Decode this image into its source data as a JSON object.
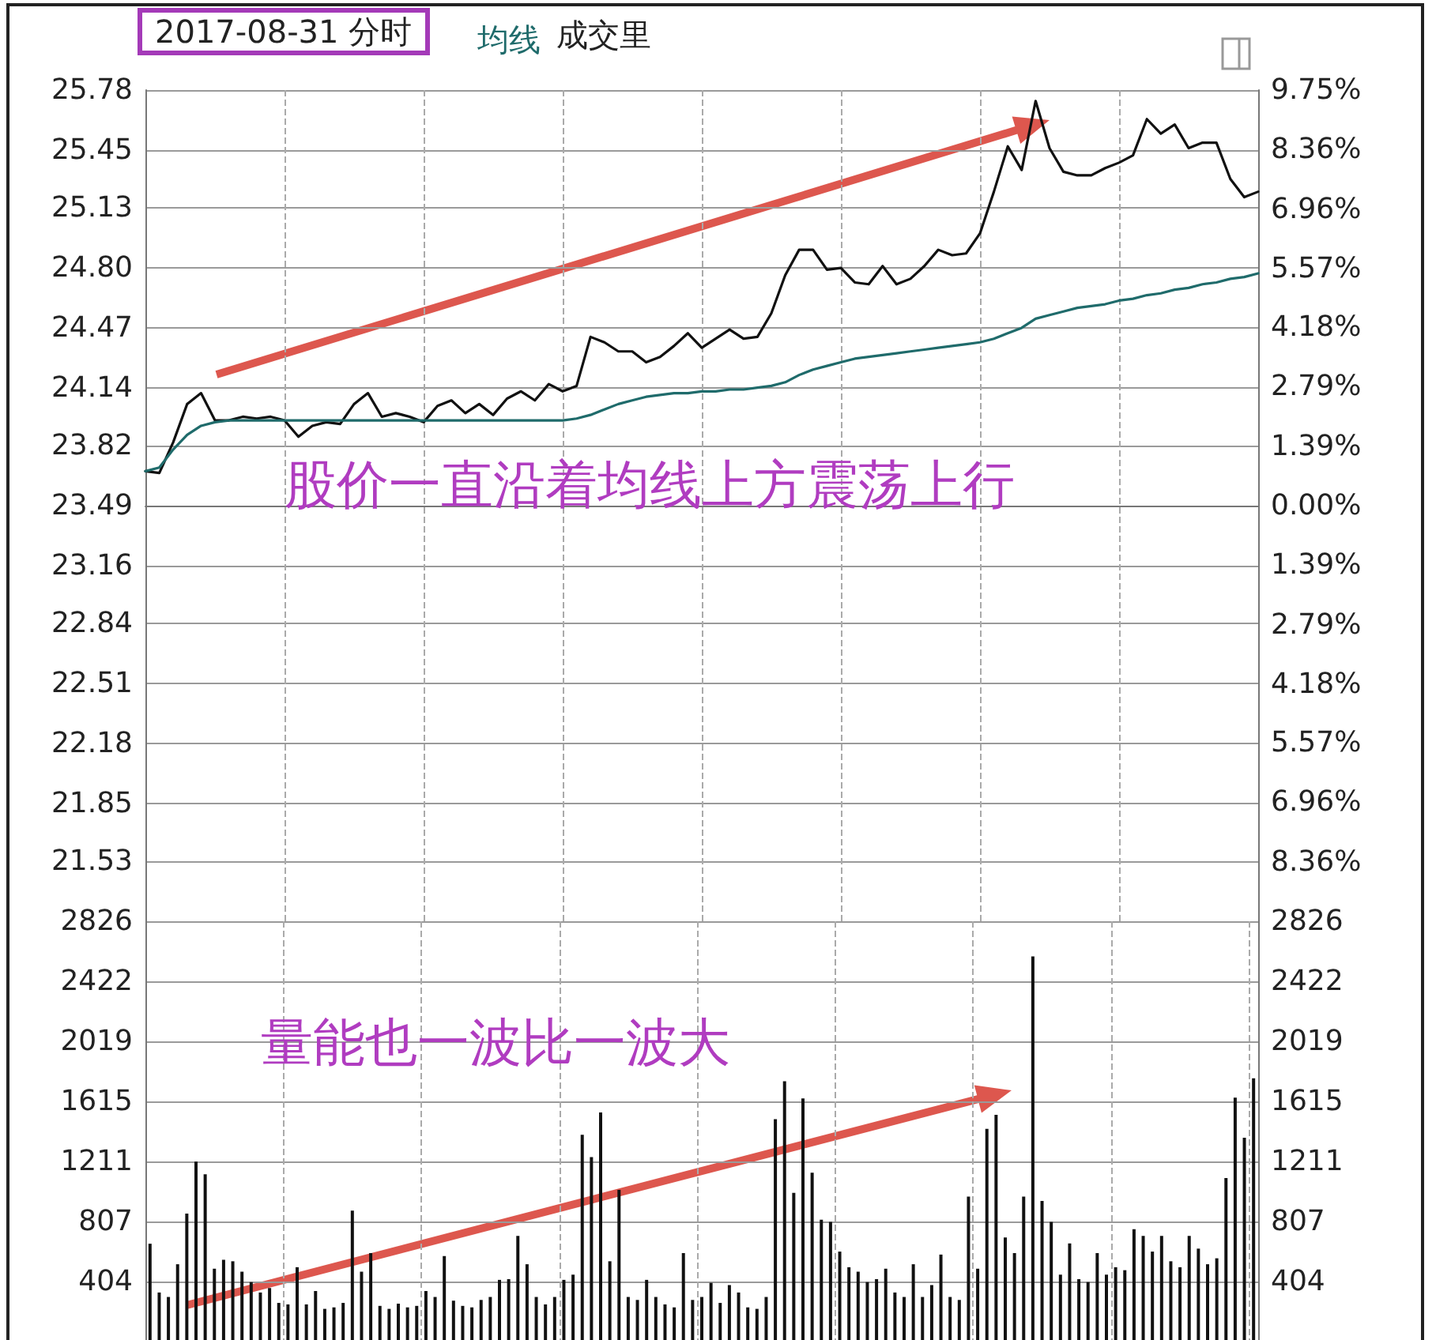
{
  "chart_data": [
    {
      "type": "line",
      "title": "2017-08-31 分时",
      "annotations": [
        "成交里",
        "股价一直沿着均线上方震荡上行"
      ],
      "categories": [
        null,
        null,
        null,
        null,
        null,
        null,
        null,
        null,
        null,
        null,
        null,
        null,
        null,
        null,
        null,
        null,
        null,
        null,
        null,
        null,
        null,
        null,
        null,
        null,
        null,
        null,
        null,
        null,
        null,
        null,
        null,
        null,
        null,
        null,
        null,
        null,
        null,
        null,
        null,
        null,
        null,
        null,
        null,
        null,
        null,
        null,
        null,
        null,
        null,
        null,
        null,
        null,
        null,
        null,
        null,
        null,
        null,
        null,
        null,
        null,
        null,
        null,
        null,
        null,
        null,
        null,
        null,
        null,
        null,
        null,
        null,
        null,
        null,
        null,
        null,
        null,
        null,
        null,
        null,
        null,
        null
      ],
      "series": [
        {
          "color": "#111111",
          "values": [
            23.68,
            23.67,
            23.84,
            24.05,
            24.11,
            23.96,
            23.96,
            23.98,
            23.97,
            23.98,
            23.96,
            23.87,
            23.93,
            23.95,
            23.94,
            24.05,
            24.11,
            23.98,
            24.0,
            23.98,
            23.95,
            24.04,
            24.07,
            24.0,
            24.05,
            23.99,
            24.08,
            24.12,
            24.07,
            24.16,
            24.12,
            24.15,
            24.42,
            24.39,
            24.34,
            24.34,
            24.28,
            24.31,
            24.37,
            24.44,
            24.36,
            24.41,
            24.46,
            24.41,
            24.42,
            24.55,
            24.76,
            24.9,
            24.9,
            24.79,
            24.8,
            24.72,
            24.71,
            24.81,
            24.71,
            24.74,
            24.81,
            24.9,
            24.87,
            24.88,
            24.99,
            25.22,
            25.47,
            25.34,
            25.72,
            25.46,
            25.33,
            25.31,
            25.31,
            25.35,
            25.38,
            25.42,
            25.62,
            25.54,
            25.59,
            25.46,
            25.49,
            25.49,
            25.29,
            25.19,
            25.22
          ]
        },
        {
          "name": "均线",
          "color": "#1f6b6b",
          "values": [
            23.68,
            23.7,
            23.8,
            23.88,
            23.93,
            23.95,
            23.96,
            23.96,
            23.96,
            23.96,
            23.96,
            23.96,
            23.96,
            23.96,
            23.96,
            23.96,
            23.96,
            23.96,
            23.96,
            23.96,
            23.96,
            23.96,
            23.96,
            23.96,
            23.96,
            23.96,
            23.96,
            23.96,
            23.96,
            23.96,
            23.96,
            23.97,
            23.99,
            24.02,
            24.05,
            24.07,
            24.09,
            24.1,
            24.11,
            24.11,
            24.12,
            24.12,
            24.13,
            24.13,
            24.14,
            24.15,
            24.17,
            24.21,
            24.24,
            24.26,
            24.28,
            24.3,
            24.31,
            24.32,
            24.33,
            24.34,
            24.35,
            24.36,
            24.37,
            24.38,
            24.39,
            24.41,
            24.44,
            24.47,
            24.52,
            24.54,
            24.56,
            24.58,
            24.59,
            24.6,
            24.62,
            24.63,
            24.65,
            24.66,
            24.68,
            24.69,
            24.71,
            24.72,
            24.74,
            24.75,
            24.77
          ]
        }
      ],
      "ylim": [
        21.2,
        25.78
      ],
      "yticks": [
        25.78,
        25.45,
        25.13,
        {
          "value": 24.8,
          "label": "24.80"
        },
        24.47,
        24.14,
        23.82,
        23.49,
        23.16,
        22.84,
        22.51,
        22.18,
        21.85,
        21.53
      ],
      "y2lim": [
        -9.75,
        9.75
      ],
      "y2ticks": [
        {
          "value": 9.75,
          "label": "9.75%"
        },
        {
          "value": 8.36,
          "label": "8.36%"
        },
        {
          "value": 6.96,
          "label": "6.96%"
        },
        {
          "value": 5.57,
          "label": "5.57%"
        },
        {
          "value": 4.18,
          "label": "4.18%"
        },
        {
          "value": 2.79,
          "label": "2.79%"
        },
        {
          "value": 1.39,
          "label": "1.39%"
        },
        {
          "value": 0,
          "label": "0.00%"
        },
        {
          "value": -1.39,
          "label": "1.39%"
        },
        {
          "value": -2.79,
          "label": "2.79%"
        },
        {
          "value": -4.18,
          "label": "4.18%"
        },
        {
          "value": -5.57,
          "label": "5.57%"
        },
        {
          "value": -6.96,
          "label": "6.96%"
        },
        {
          "value": -8.36,
          "label": "8.36%"
        }
      ],
      "grid": true,
      "legend": "top left",
      "tick_labels": "y"
    },
    {
      "type": "bar",
      "annotations": [
        "量能也一波比一波大"
      ],
      "categories": [
        null,
        null,
        null,
        null,
        null,
        null,
        null,
        null,
        null,
        null,
        null,
        null,
        null,
        null,
        null,
        null,
        null,
        null,
        null,
        null,
        null,
        null,
        null,
        null,
        null,
        null,
        null,
        null,
        null,
        null,
        null,
        null,
        null,
        null,
        null,
        null,
        null,
        null,
        null,
        null,
        null,
        null,
        null,
        null,
        null,
        null,
        null,
        null,
        null,
        null,
        null,
        null,
        null,
        null,
        null,
        null,
        null,
        null,
        null,
        null,
        null,
        null,
        null,
        null,
        null,
        null,
        null,
        null,
        null,
        null,
        null,
        null,
        null,
        null,
        null,
        null,
        null,
        null,
        null,
        null,
        null,
        null,
        null,
        null,
        null,
        null,
        null,
        null,
        null,
        null,
        null,
        null,
        null,
        null,
        null,
        null,
        null,
        null,
        null,
        null,
        null,
        null,
        null,
        null,
        null,
        null,
        null,
        null,
        null,
        null,
        null,
        null,
        null,
        null,
        null,
        null,
        null,
        null,
        null,
        null,
        null
      ],
      "values": [
        658,
        330,
        300,
        520,
        860,
        1210,
        1125,
        490,
        550,
        540,
        470,
        400,
        330,
        360,
        260,
        250,
        500,
        250,
        340,
        220,
        230,
        260,
        880,
        470,
        595,
        240,
        220,
        255,
        230,
        240,
        340,
        300,
        575,
        275,
        240,
        230,
        280,
        300,
        415,
        420,
        710,
        520,
        300,
        250,
        300,
        415,
        450,
        1390,
        1240,
        1540,
        540,
        1020,
        300,
        280,
        415,
        300,
        250,
        230,
        595,
        280,
        300,
        395,
        260,
        380,
        330,
        230,
        220,
        300,
        1495,
        1750,
        1000,
        1635,
        1135,
        820,
        805,
        605,
        500,
        470,
        400,
        420,
        490,
        330,
        300,
        520,
        300,
        380,
        585,
        300,
        280,
        975,
        490,
        1430,
        1525,
        700,
        595,
        975,
        2590,
        945,
        805,
        450,
        660,
        420,
        400,
        595,
        450,
        500,
        480,
        755,
        710,
        605,
        710,
        540,
        500,
        710,
        625,
        520,
        560,
        1100,
        1640,
        1370,
        1770
      ],
      "color": "#111111",
      "ylim": [
        0,
        2826
      ],
      "yticks": [
        404,
        807,
        1211,
        1615,
        2019,
        2422,
        2826
      ],
      "y2lim": [
        0,
        2826
      ],
      "y2ticks": [
        404,
        807,
        1211,
        1615,
        2019,
        2422,
        2826
      ],
      "grid": true,
      "tick_labels": "y"
    }
  ]
}
